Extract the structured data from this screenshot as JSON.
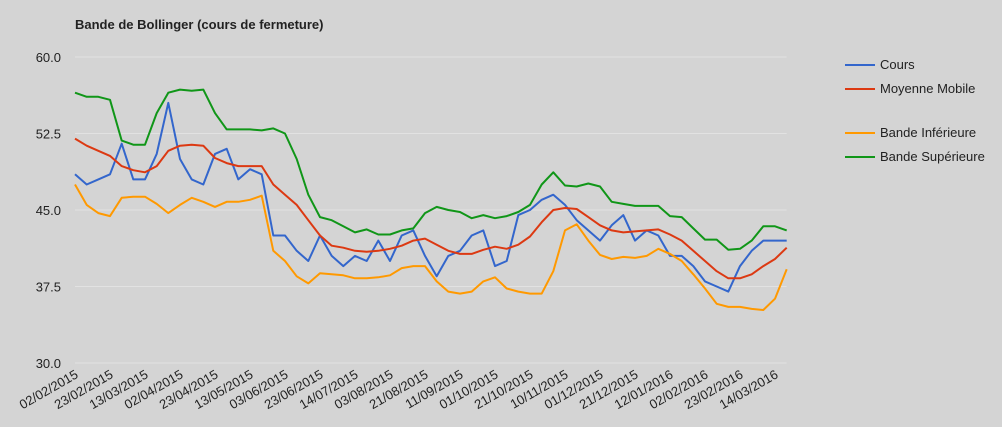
{
  "chart_data": {
    "type": "line",
    "title": "Bande de Bollinger (cours de fermeture)",
    "categories": [
      "02/02/2015",
      null,
      null,
      "23/02/2015",
      null,
      null,
      "13/03/2015",
      null,
      null,
      "02/04/2015",
      null,
      null,
      "23/04/2015",
      null,
      null,
      "13/05/2015",
      null,
      null,
      "03/06/2015",
      null,
      null,
      "23/06/2015",
      null,
      null,
      "14/07/2015",
      null,
      null,
      "03/08/2015",
      null,
      null,
      "21/08/2015",
      null,
      null,
      "11/09/2015",
      null,
      null,
      "01/10/2015",
      null,
      null,
      "21/10/2015",
      null,
      null,
      "10/11/2015",
      null,
      null,
      "01/12/2015",
      null,
      null,
      "21/12/2015",
      null,
      null,
      "12/01/2016",
      null,
      null,
      "02/02/2016",
      null,
      null,
      "23/02/2016",
      null,
      null,
      "14/03/2016",
      null
    ],
    "series": [
      {
        "name": "Cours",
        "color": "#3366cc",
        "values": [
          48.5,
          47.5,
          48,
          48.5,
          51.5,
          48,
          48,
          50.5,
          55.5,
          50,
          48,
          47.5,
          50.5,
          51,
          48,
          49,
          48.5,
          42.5,
          42.5,
          41,
          40,
          42.5,
          40.5,
          39.5,
          40.5,
          40,
          42,
          40,
          42.5,
          43,
          40.5,
          38.5,
          40.5,
          41,
          42.5,
          43,
          39.5,
          40,
          44.5,
          45,
          46,
          46.5,
          45.5,
          44,
          43,
          42,
          43.5,
          44.5,
          42,
          43,
          42.5,
          40.5,
          40.5,
          39.5,
          38,
          37.5,
          37,
          39.5,
          41,
          42,
          42,
          42
        ]
      },
      {
        "name": "Moyenne Mobile",
        "color": "#dc3912",
        "values": [
          52,
          51.3,
          50.8,
          50.3,
          49.3,
          48.9,
          48.7,
          49.3,
          50.8,
          51.3,
          51.4,
          51.3,
          50.1,
          49.6,
          49.3,
          49.3,
          49.3,
          47.5,
          46.5,
          45.5,
          44,
          42.5,
          41.5,
          41.3,
          41,
          40.9,
          41,
          41.2,
          41.5,
          42,
          42.2,
          41.6,
          41,
          40.7,
          40.7,
          41.1,
          41.4,
          41.2,
          41.6,
          42.4,
          43.8,
          45,
          45.2,
          45.1,
          44.3,
          43.5,
          43,
          42.8,
          42.9,
          43,
          43.1,
          42.6,
          42,
          41,
          40,
          39,
          38.3,
          38.3,
          38.7,
          39.5,
          40.2,
          41.3
        ]
      },
      {
        "name": "Bande Inférieure",
        "color": "#ff9900",
        "values": [
          47.5,
          45.5,
          44.7,
          44.4,
          46.2,
          46.3,
          46.3,
          45.6,
          44.7,
          45.5,
          46.2,
          45.8,
          45.3,
          45.8,
          45.8,
          46,
          46.4,
          41,
          40,
          38.5,
          37.8,
          38.8,
          38.7,
          38.6,
          38.3,
          38.3,
          38.4,
          38.6,
          39.3,
          39.5,
          39.5,
          38,
          37,
          36.8,
          37,
          38,
          38.4,
          37.3,
          37,
          36.8,
          36.8,
          39,
          43,
          43.6,
          42,
          40.6,
          40.2,
          40.4,
          40.3,
          40.5,
          41.2,
          40.7,
          40,
          38.7,
          37.3,
          35.8,
          35.5,
          35.5,
          35.3,
          35.2,
          36.3,
          39.2
        ]
      },
      {
        "name": "Bande Supérieure",
        "color": "#109618",
        "values": [
          56.5,
          56.1,
          56.1,
          55.8,
          51.8,
          51.4,
          51.4,
          54.5,
          56.5,
          56.8,
          56.7,
          56.8,
          54.5,
          52.9,
          52.9,
          52.9,
          52.8,
          53,
          52.5,
          50,
          46.5,
          44.3,
          44,
          43.4,
          42.8,
          43.1,
          42.6,
          42.6,
          43,
          43.2,
          44.7,
          45.3,
          45,
          44.8,
          44.2,
          44.5,
          44.2,
          44.4,
          44.8,
          45.5,
          47.5,
          48.7,
          47.4,
          47.3,
          47.6,
          47.3,
          45.8,
          45.6,
          45.4,
          45.4,
          45.4,
          44.4,
          44.3,
          43.2,
          42.1,
          42.1,
          41.1,
          41.2,
          42,
          43.4,
          43.4,
          43
        ]
      }
    ],
    "ylim": [
      30,
      60
    ],
    "yticks": [
      {
        "value": 30,
        "label": "30.0"
      },
      {
        "value": 37.5,
        "label": "37.5"
      },
      {
        "value": 45,
        "label": "45.0"
      },
      {
        "value": 52.5,
        "label": "52.5"
      },
      {
        "value": 60,
        "label": "60.0"
      }
    ],
    "grid": true,
    "legend": "right"
  }
}
